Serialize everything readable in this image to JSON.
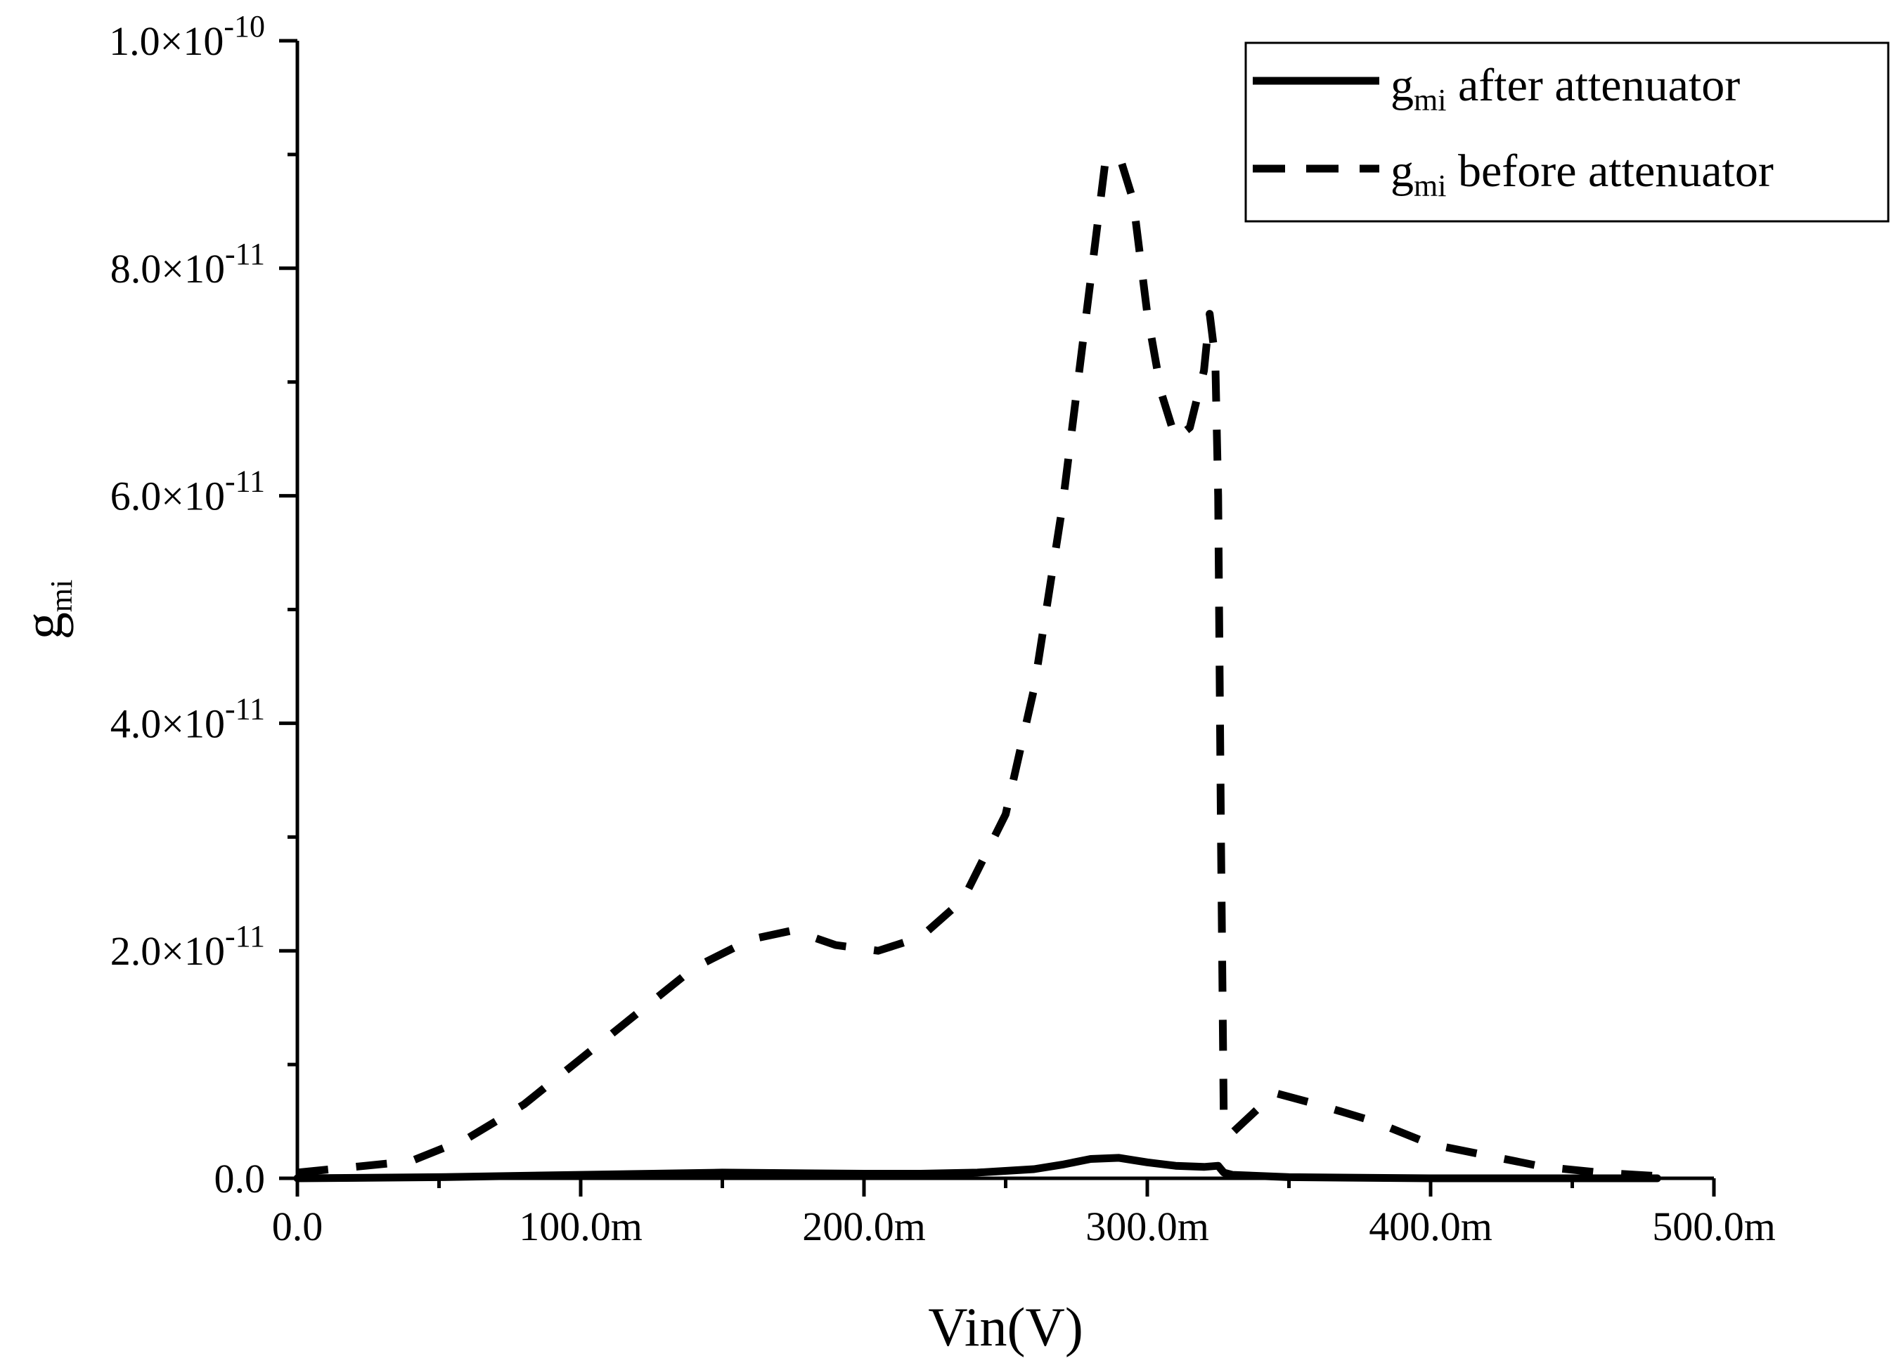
{
  "chart_data": {
    "type": "line",
    "title": "",
    "xlabel": "Vin(V)",
    "ylabel": {
      "base": "g",
      "sub": "mi"
    },
    "xlim": [
      0,
      0.5
    ],
    "ylim": [
      0,
      1e-10
    ],
    "grid": false,
    "legend_position": "top-right",
    "x_ticks": [
      {
        "value": 0.0,
        "label": "0.0"
      },
      {
        "value": 0.1,
        "label": "100.0m"
      },
      {
        "value": 0.2,
        "label": "200.0m"
      },
      {
        "value": 0.3,
        "label": "300.0m"
      },
      {
        "value": 0.4,
        "label": "400.0m"
      },
      {
        "value": 0.5,
        "label": "500.0m"
      }
    ],
    "y_ticks": [
      {
        "value": 0.0,
        "mantissa": "0.0",
        "exponent": ""
      },
      {
        "value": 2e-11,
        "mantissa": "2.0×10",
        "exponent": "-11"
      },
      {
        "value": 4e-11,
        "mantissa": "4.0×10",
        "exponent": "-11"
      },
      {
        "value": 6e-11,
        "mantissa": "6.0×10",
        "exponent": "-11"
      },
      {
        "value": 8e-11,
        "mantissa": "8.0×10",
        "exponent": "-11"
      },
      {
        "value": 1e-10,
        "mantissa": "1.0×10",
        "exponent": "-10"
      }
    ],
    "series": [
      {
        "name": "after attenuator",
        "legend_base": "g",
        "legend_sub": "mi",
        "legend_rest": " after attenuator",
        "style": "solid",
        "x": [
          0.0,
          0.05,
          0.1,
          0.15,
          0.2,
          0.22,
          0.24,
          0.26,
          0.27,
          0.28,
          0.29,
          0.3,
          0.31,
          0.32,
          0.325,
          0.327,
          0.33,
          0.35,
          0.4,
          0.45,
          0.48
        ],
        "y": [
          0.0,
          1e-13,
          3e-13,
          5e-13,
          4e-13,
          4e-13,
          5e-13,
          8e-13,
          1.2e-12,
          1.7e-12,
          1.8e-12,
          1.4e-12,
          1.1e-12,
          1e-12,
          1.1e-12,
          5e-13,
          3e-13,
          1e-13,
          0.0,
          0.0,
          0.0
        ]
      },
      {
        "name": "before attenuator",
        "legend_base": "g",
        "legend_sub": "mi",
        "legend_rest": " before attenuator",
        "style": "dashed",
        "x": [
          0.0,
          0.02,
          0.04,
          0.06,
          0.08,
          0.1,
          0.12,
          0.14,
          0.16,
          0.175,
          0.19,
          0.205,
          0.22,
          0.235,
          0.25,
          0.26,
          0.27,
          0.28,
          0.285,
          0.29,
          0.295,
          0.3,
          0.305,
          0.31,
          0.315,
          0.32,
          0.322,
          0.324,
          0.325,
          0.326,
          0.327,
          0.33,
          0.345,
          0.36,
          0.38,
          0.4,
          0.42,
          0.44,
          0.46,
          0.48
        ],
        "y": [
          5e-13,
          1e-12,
          1.5e-12,
          3.5e-12,
          6.5e-12,
          1.05e-11,
          1.45e-11,
          1.85e-11,
          2.1e-11,
          2.18e-11,
          2.05e-11,
          2e-11,
          2.12e-11,
          2.45e-11,
          3.2e-11,
          4.3e-11,
          5.9e-11,
          7.9e-11,
          8.9e-11,
          9e-11,
          8.6e-11,
          7.6e-11,
          6.9e-11,
          6.5e-11,
          6.6e-11,
          7.1e-11,
          7.6e-11,
          7.2e-11,
          6e-11,
          3e-11,
          5e-12,
          4e-12,
          7.5e-12,
          6.5e-12,
          5e-12,
          3e-12,
          2e-12,
          1e-12,
          5e-13,
          2e-13
        ]
      }
    ]
  }
}
